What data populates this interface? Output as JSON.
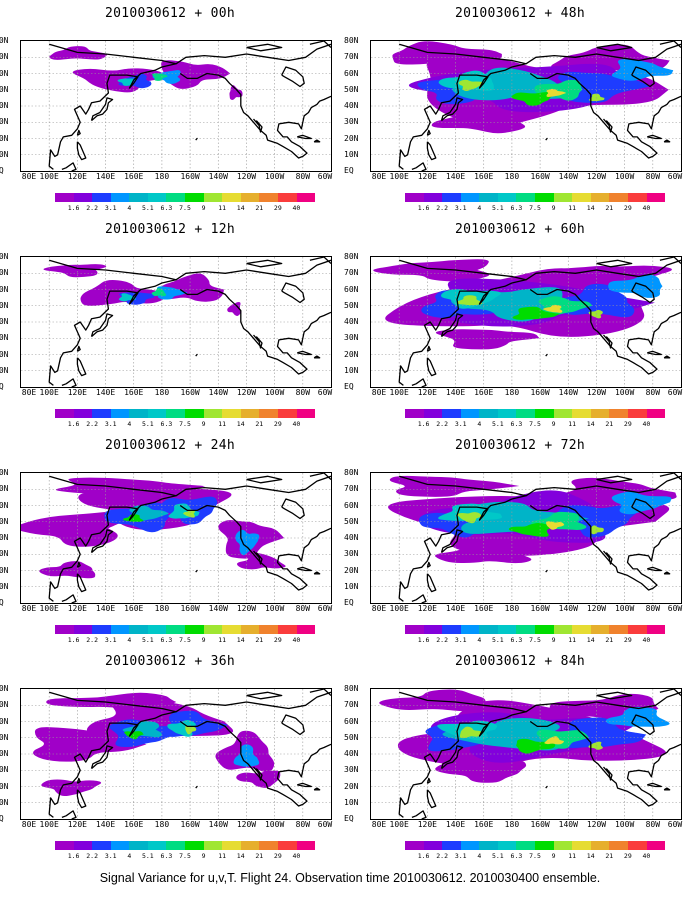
{
  "footer": "Signal Variance for u,v,T. Flight 24. Observation time 2010030612. 2010030400 ensemble.",
  "lat_labels": [
    "80N",
    "70N",
    "60N",
    "50N",
    "40N",
    "30N",
    "20N",
    "10N",
    "EQ"
  ],
  "lon_labels": [
    "80E",
    "100E",
    "120E",
    "140E",
    "160E",
    "180",
    "160W",
    "140W",
    "120W",
    "100W",
    "80W",
    "60W"
  ],
  "colorbar": {
    "levels": [
      "1.6",
      "2.2",
      "3.1",
      "4",
      "5.1",
      "6.3",
      "7.5",
      "9",
      "11",
      "14",
      "21",
      "29",
      "40"
    ],
    "colors": [
      "#a000c8",
      "#8200dc",
      "#1e3cff",
      "#0096ff",
      "#00b4c8",
      "#00c8c8",
      "#00dc82",
      "#00dc00",
      "#a0e632",
      "#e6dc32",
      "#e6af2d",
      "#f0822d",
      "#fa3c3c",
      "#f00082"
    ]
  },
  "panels": [
    {
      "title": "2010030612 + 00h",
      "coverage": "low"
    },
    {
      "title": "2010030612 + 48h",
      "coverage": "high"
    },
    {
      "title": "2010030612 + 12h",
      "coverage": "low"
    },
    {
      "title": "2010030612 + 60h",
      "coverage": "high"
    },
    {
      "title": "2010030612 + 24h",
      "coverage": "mid"
    },
    {
      "title": "2010030612 + 72h",
      "coverage": "high"
    },
    {
      "title": "2010030612 + 36h",
      "coverage": "mid"
    },
    {
      "title": "2010030612 + 84h",
      "coverage": "high"
    }
  ]
}
